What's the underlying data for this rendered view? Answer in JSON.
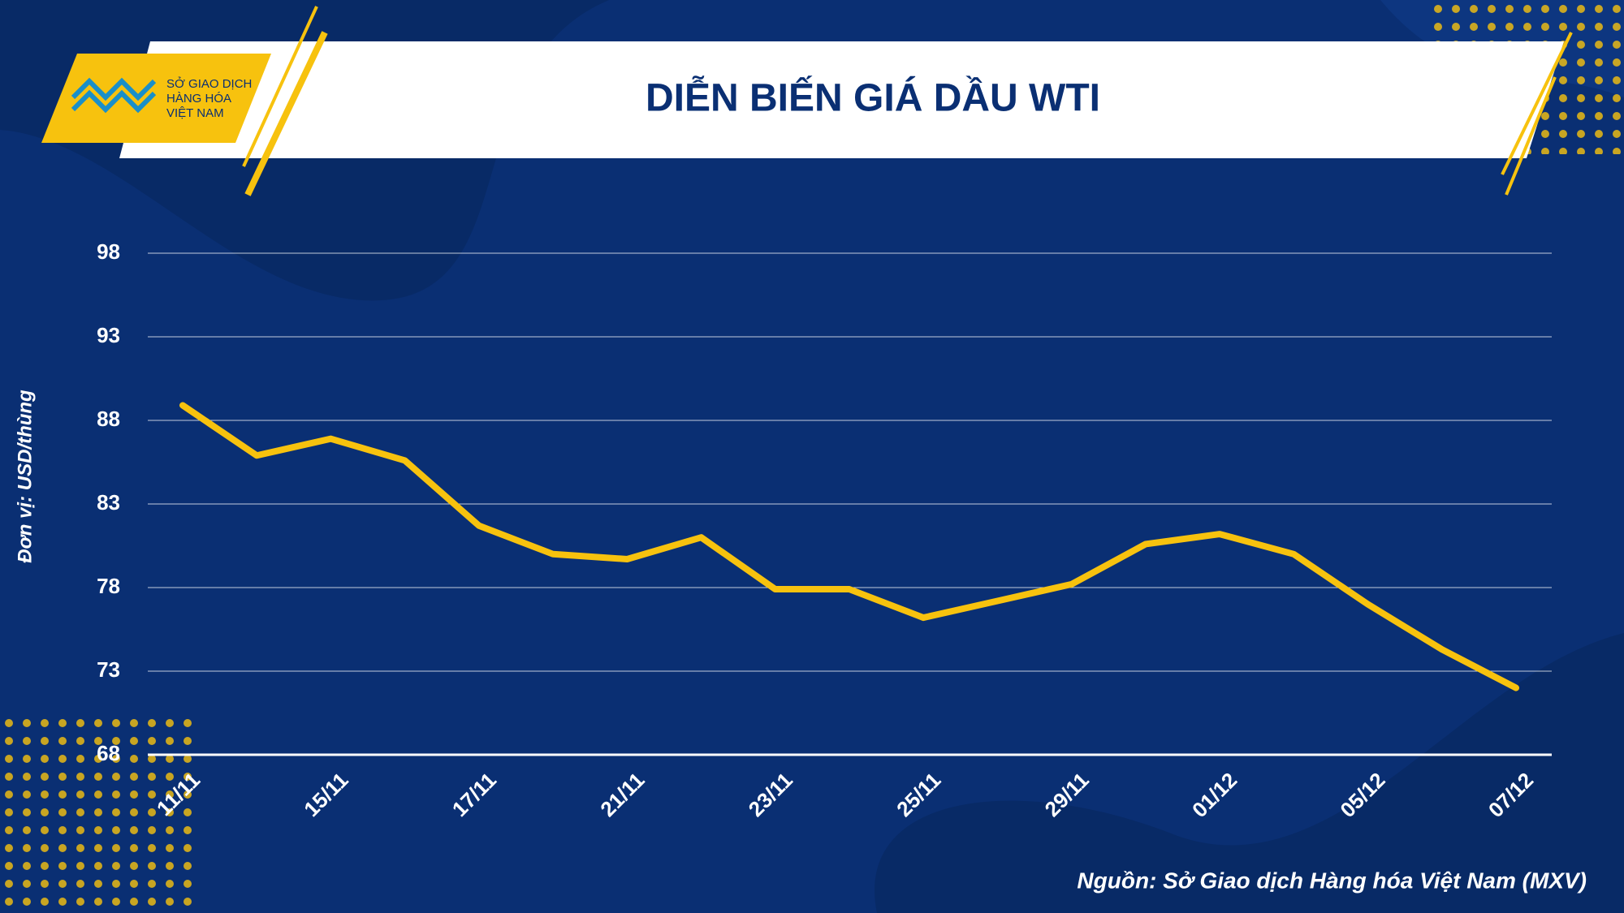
{
  "header": {
    "logo_lines": [
      "SỞ GIAO DỊCH",
      "HÀNG HÓA",
      "VIỆT NAM"
    ]
  },
  "chart_data": {
    "type": "line",
    "title": "DIỄN BIẾN GIÁ DẦU WTI",
    "y_label": "Đơn vị: USD/thùng",
    "source": "Nguồn: Sở Giao dịch Hàng hóa Việt Nam (MXV)",
    "categories": [
      "11/11",
      null,
      "15/11",
      null,
      "17/11",
      null,
      "21/11",
      null,
      "23/11",
      null,
      "25/11",
      null,
      "29/11",
      null,
      "01/12",
      null,
      "05/12",
      null,
      "07/12"
    ],
    "values": [
      88.9,
      85.9,
      86.9,
      85.6,
      81.7,
      80.0,
      79.7,
      81.0,
      77.9,
      77.9,
      76.2,
      77.2,
      78.2,
      80.6,
      81.2,
      80.0,
      77.0,
      74.3,
      72.0
    ],
    "color": "#f7c20e",
    "ylim": [
      68,
      98
    ],
    "yticks": [
      68,
      73,
      78,
      83,
      88,
      93,
      98
    ],
    "grid": true
  }
}
